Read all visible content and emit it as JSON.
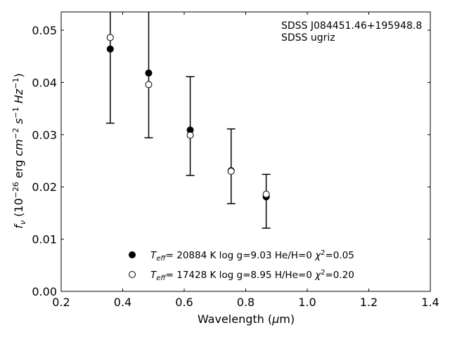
{
  "chart_data": {
    "type": "scatter",
    "xlabel": "Wavelength",
    "xlabel_unit": "(µm)",
    "ylabel": "f_ν (10^−26 erg cm^−2 s^−1 Hz^−1)",
    "xlim": [
      0.2,
      1.4
    ],
    "ylim": [
      0.0,
      0.0535
    ],
    "xticks": [
      0.2,
      0.4,
      0.6,
      0.8,
      1.0,
      1.2,
      1.4
    ],
    "xtick_labels": [
      "0.2",
      "0.4",
      "0.6",
      "0.8",
      "1.0",
      "1.2",
      "1.4"
    ],
    "yticks": [
      0.0,
      0.01,
      0.02,
      0.03,
      0.04,
      0.05
    ],
    "ytick_labels": [
      "0.00",
      "0.01",
      "0.02",
      "0.03",
      "0.04",
      "0.05"
    ],
    "annotations": [
      "SDSS J084451.46+195948.8",
      "SDSS ugriz"
    ],
    "grid": false,
    "legend_position": "bottom-center",
    "error_bars": {
      "x": [
        0.3595,
        0.4845,
        0.6195,
        0.7525,
        0.8665
      ],
      "y": [
        0.0464,
        0.0418,
        0.0309,
        0.023,
        0.0181
      ],
      "yerr_low": [
        0.0322,
        0.0294,
        0.0222,
        0.0168,
        0.0121
      ],
      "yerr_high": [
        0.056,
        0.056,
        0.0411,
        0.0311,
        0.0224
      ]
    },
    "series": [
      {
        "marker": "filled-circle",
        "legend": {
          "teff": "20884",
          "logg": "9.03",
          "comp": "He/H=0",
          "chi2": "0.05"
        },
        "x": [
          0.3595,
          0.4845,
          0.6195,
          0.7525,
          0.8665
        ],
        "y": [
          0.0464,
          0.0418,
          0.0309,
          0.0231,
          0.0181
        ]
      },
      {
        "marker": "open-circle",
        "legend": {
          "teff": "17428",
          "logg": "8.95",
          "comp": "H/He=0",
          "chi2": "0.20"
        },
        "x": [
          0.3595,
          0.4845,
          0.6195,
          0.7525,
          0.8665
        ],
        "y": [
          0.0486,
          0.0396,
          0.0299,
          0.023,
          0.0186
        ]
      }
    ]
  }
}
